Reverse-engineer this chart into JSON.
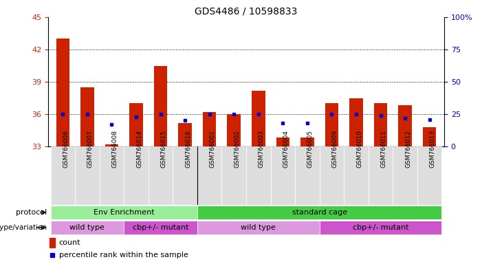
{
  "title": "GDS4486 / 10598833",
  "samples": [
    "GSM766006",
    "GSM766007",
    "GSM766008",
    "GSM766014",
    "GSM766015",
    "GSM766016",
    "GSM766001",
    "GSM766002",
    "GSM766003",
    "GSM766004",
    "GSM766005",
    "GSM766009",
    "GSM766010",
    "GSM766011",
    "GSM766012",
    "GSM766013"
  ],
  "counts": [
    43.0,
    38.5,
    33.2,
    37.0,
    40.5,
    35.2,
    36.2,
    36.0,
    38.2,
    33.8,
    33.8,
    37.0,
    37.5,
    37.0,
    36.8,
    34.8
  ],
  "percentiles": [
    25,
    25,
    17,
    23,
    25,
    20,
    25,
    25,
    25,
    18,
    18,
    25,
    25,
    24,
    22,
    21
  ],
  "ymin": 33,
  "ymax": 45,
  "yticks": [
    33,
    36,
    39,
    42,
    45
  ],
  "right_yticks": [
    0,
    25,
    50,
    75,
    100
  ],
  "bar_color": "#cc2200",
  "dot_color": "#0000cc",
  "env_color": "#99ee99",
  "std_color": "#44cc44",
  "wt_color": "#dd99dd",
  "mut_color": "#cc55cc",
  "proto_spans": [
    [
      0,
      6,
      "Env Enrichment",
      "#99ee99"
    ],
    [
      6,
      16,
      "standard cage",
      "#44cc44"
    ]
  ],
  "geno_spans": [
    [
      0,
      3,
      "wild type",
      "#dd99dd"
    ],
    [
      3,
      6,
      "cbp+/- mutant",
      "#cc55cc"
    ],
    [
      6,
      11,
      "wild type",
      "#dd99dd"
    ],
    [
      11,
      16,
      "cbp+/- mutant",
      "#cc55cc"
    ]
  ]
}
